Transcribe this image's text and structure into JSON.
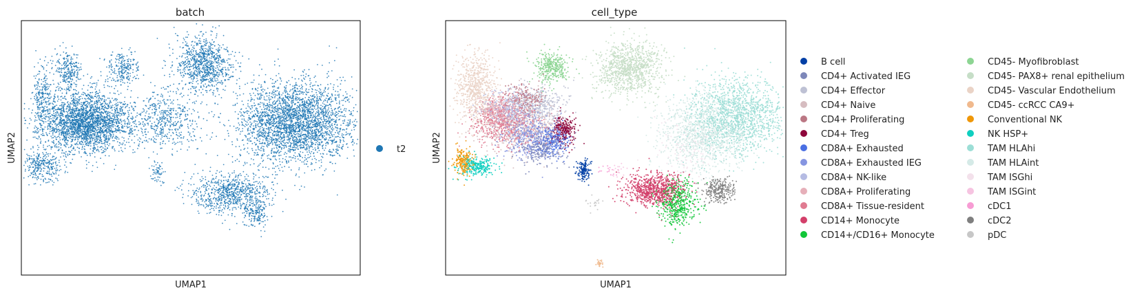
{
  "chart_data": [
    {
      "type": "scatter",
      "title": "batch",
      "xlabel": "UMAP1",
      "ylabel": "UMAP2",
      "grid": false,
      "legend_placement": "right",
      "legend": [
        {
          "name": "t2",
          "color": "#1f77b4"
        }
      ],
      "clusters": [
        {
          "label": "t2",
          "center": [
            -6.5,
            1.0
          ],
          "spread": [
            1.4,
            0.9
          ],
          "n": 2600
        },
        {
          "label": "t2",
          "center": [
            -9.2,
            -1.5
          ],
          "spread": [
            0.6,
            0.5
          ],
          "n": 300
        },
        {
          "label": "t2",
          "center": [
            -9.2,
            2.6
          ],
          "spread": [
            0.3,
            0.9
          ],
          "n": 220
        },
        {
          "label": "t2",
          "center": [
            -7.6,
            4.0
          ],
          "spread": [
            0.4,
            0.6
          ],
          "n": 260
        },
        {
          "label": "t2",
          "center": [
            -4.2,
            4.2
          ],
          "spread": [
            0.5,
            0.5
          ],
          "n": 220
        },
        {
          "label": "t2",
          "center": [
            0.8,
            4.4
          ],
          "spread": [
            0.9,
            0.8
          ],
          "n": 900
        },
        {
          "label": "t2",
          "center": [
            -1.5,
            1.2
          ],
          "spread": [
            1.0,
            0.9
          ],
          "n": 500
        },
        {
          "label": "t2",
          "center": [
            6.5,
            1.0
          ],
          "spread": [
            1.8,
            1.2
          ],
          "n": 3000
        },
        {
          "label": "t2",
          "center": [
            2.5,
            -3.2
          ],
          "spread": [
            1.2,
            0.6
          ],
          "n": 800
        },
        {
          "label": "t2",
          "center": [
            4.0,
            -4.4
          ],
          "spread": [
            0.4,
            0.4
          ],
          "n": 150
        },
        {
          "label": "t2",
          "center": [
            -2.0,
            -2.0
          ],
          "spread": [
            0.2,
            0.3
          ],
          "n": 60
        }
      ]
    },
    {
      "type": "scatter",
      "title": "cell_type",
      "xlabel": "UMAP1",
      "ylabel": "UMAP2",
      "grid": false,
      "legend_placement": "right",
      "legend": [
        {
          "name": "B cell",
          "color": "#023fa5"
        },
        {
          "name": "CD4+ Activated IEG",
          "color": "#7d87b9"
        },
        {
          "name": "CD4+ Effector",
          "color": "#bec1d4"
        },
        {
          "name": "CD4+ Naive",
          "color": "#d6bcc0"
        },
        {
          "name": "CD4+ Proliferating",
          "color": "#bb7784"
        },
        {
          "name": "CD4+ Treg",
          "color": "#8e063b"
        },
        {
          "name": "CD8A+ Exhausted",
          "color": "#4a6fe3"
        },
        {
          "name": "CD8A+ Exhausted IEG",
          "color": "#8595e1"
        },
        {
          "name": "CD8A+ NK-like",
          "color": "#b5bbe3"
        },
        {
          "name": "CD8A+ Proliferating",
          "color": "#e6afb9"
        },
        {
          "name": "CD8A+ Tissue-resident",
          "color": "#e07b91"
        },
        {
          "name": "CD14+ Monocyte",
          "color": "#d33f6a"
        },
        {
          "name": "CD14+/CD16+ Monocyte",
          "color": "#11c638"
        },
        {
          "name": "CD45- Myofibroblast",
          "color": "#8dd593"
        },
        {
          "name": "CD45- PAX8+ renal epithelium",
          "color": "#c6dec7"
        },
        {
          "name": "CD45- Vascular Endothelium",
          "color": "#ead3c6"
        },
        {
          "name": "CD45- ccRCC CA9+",
          "color": "#f0b98d"
        },
        {
          "name": "Conventional NK",
          "color": "#ef9708"
        },
        {
          "name": "NK HSP+",
          "color": "#0fcfc0"
        },
        {
          "name": "TAM HLAhi",
          "color": "#9cded6"
        },
        {
          "name": "TAM HLAint",
          "color": "#d5eae7"
        },
        {
          "name": "TAM ISGhi",
          "color": "#f3e1eb"
        },
        {
          "name": "TAM ISGint",
          "color": "#f6c4e1"
        },
        {
          "name": "cDC1",
          "color": "#f79cd4"
        },
        {
          "name": "cDC2",
          "color": "#7f7f7f"
        },
        {
          "name": "pDC",
          "color": "#c7c7c7"
        }
      ],
      "clusters": [
        {
          "label": "CD8A+ Tissue-resident",
          "center": [
            -6.8,
            1.0
          ],
          "spread": [
            1.0,
            0.7
          ],
          "n": 650
        },
        {
          "label": "CD4+ Naive",
          "center": [
            -6.0,
            0.8
          ],
          "spread": [
            1.2,
            0.8
          ],
          "n": 550
        },
        {
          "label": "CD8A+ Exhausted IEG",
          "center": [
            -5.2,
            0.2
          ],
          "spread": [
            0.9,
            0.7
          ],
          "n": 420
        },
        {
          "label": "CD4+ Effector",
          "center": [
            -4.8,
            2.0
          ],
          "spread": [
            0.9,
            0.6
          ],
          "n": 380
        },
        {
          "label": "CD8A+ NK-like",
          "center": [
            -6.6,
            1.8
          ],
          "spread": [
            0.8,
            0.5
          ],
          "n": 300
        },
        {
          "label": "CD4+ Activated IEG",
          "center": [
            -4.6,
            -0.5
          ],
          "spread": [
            0.7,
            0.5
          ],
          "n": 260
        },
        {
          "label": "CD8A+ Exhausted",
          "center": [
            -3.8,
            -0.2
          ],
          "spread": [
            0.5,
            0.5
          ],
          "n": 200
        },
        {
          "label": "CD4+ Proliferating",
          "center": [
            -5.6,
            2.4
          ],
          "spread": [
            0.6,
            0.4
          ],
          "n": 180
        },
        {
          "label": "CD8A+ Proliferating",
          "center": [
            -7.4,
            1.8
          ],
          "spread": [
            0.5,
            0.4
          ],
          "n": 200
        },
        {
          "label": "CD4+ Treg",
          "center": [
            -3.2,
            0.6
          ],
          "spread": [
            0.4,
            0.4
          ],
          "n": 260
        },
        {
          "label": "Conventional NK",
          "center": [
            -9.4,
            -1.3
          ],
          "spread": [
            0.3,
            0.4
          ],
          "n": 200
        },
        {
          "label": "NK HSP+",
          "center": [
            -8.6,
            -1.6
          ],
          "spread": [
            0.6,
            0.3
          ],
          "n": 260
        },
        {
          "label": "CD45- Vascular Endothelium",
          "center": [
            -8.6,
            3.0
          ],
          "spread": [
            0.6,
            1.0
          ],
          "n": 650
        },
        {
          "label": "CD45- Myofibroblast",
          "center": [
            -4.0,
            4.2
          ],
          "spread": [
            0.5,
            0.5
          ],
          "n": 350
        },
        {
          "label": "CD45- PAX8+ renal epithelium",
          "center": [
            0.9,
            4.2
          ],
          "spread": [
            1.0,
            0.8
          ],
          "n": 1000
        },
        {
          "label": "B cell",
          "center": [
            -2.0,
            -1.8
          ],
          "spread": [
            0.2,
            0.3
          ],
          "n": 140
        },
        {
          "label": "CD14+ Monocyte",
          "center": [
            2.4,
            -3.0
          ],
          "spread": [
            0.9,
            0.5
          ],
          "n": 800
        },
        {
          "label": "CD14+/CD16+ Monocyte",
          "center": [
            3.8,
            -3.8
          ],
          "spread": [
            0.6,
            0.7
          ],
          "n": 460
        },
        {
          "label": "cDC2",
          "center": [
            6.4,
            -3.0
          ],
          "spread": [
            0.5,
            0.4
          ],
          "n": 260
        },
        {
          "label": "TAM HLAhi",
          "center": [
            7.5,
            1.4
          ],
          "spread": [
            1.4,
            1.1
          ],
          "n": 1400
        },
        {
          "label": "TAM HLAint",
          "center": [
            5.5,
            0.4
          ],
          "spread": [
            1.4,
            1.1
          ],
          "n": 1200
        },
        {
          "label": "TAM ISGhi",
          "center": [
            4.4,
            -0.5
          ],
          "spread": [
            1.0,
            0.8
          ],
          "n": 120
        },
        {
          "label": "TAM ISGint",
          "center": [
            0.2,
            -1.8
          ],
          "spread": [
            0.3,
            0.2
          ],
          "n": 20
        },
        {
          "label": "cDC1",
          "center": [
            -0.6,
            -1.9
          ],
          "spread": [
            0.3,
            0.2
          ],
          "n": 15
        },
        {
          "label": "pDC",
          "center": [
            -1.3,
            -3.8
          ],
          "spread": [
            0.2,
            0.2
          ],
          "n": 20
        },
        {
          "label": "CD45- ccRCC CA9+",
          "center": [
            -1.0,
            -7.3
          ],
          "spread": [
            0.1,
            0.1
          ],
          "n": 25
        }
      ]
    }
  ],
  "axes_range": {
    "x": [
      -10.5,
      10.5
    ],
    "y": [
      -8.0,
      7.0
    ]
  }
}
